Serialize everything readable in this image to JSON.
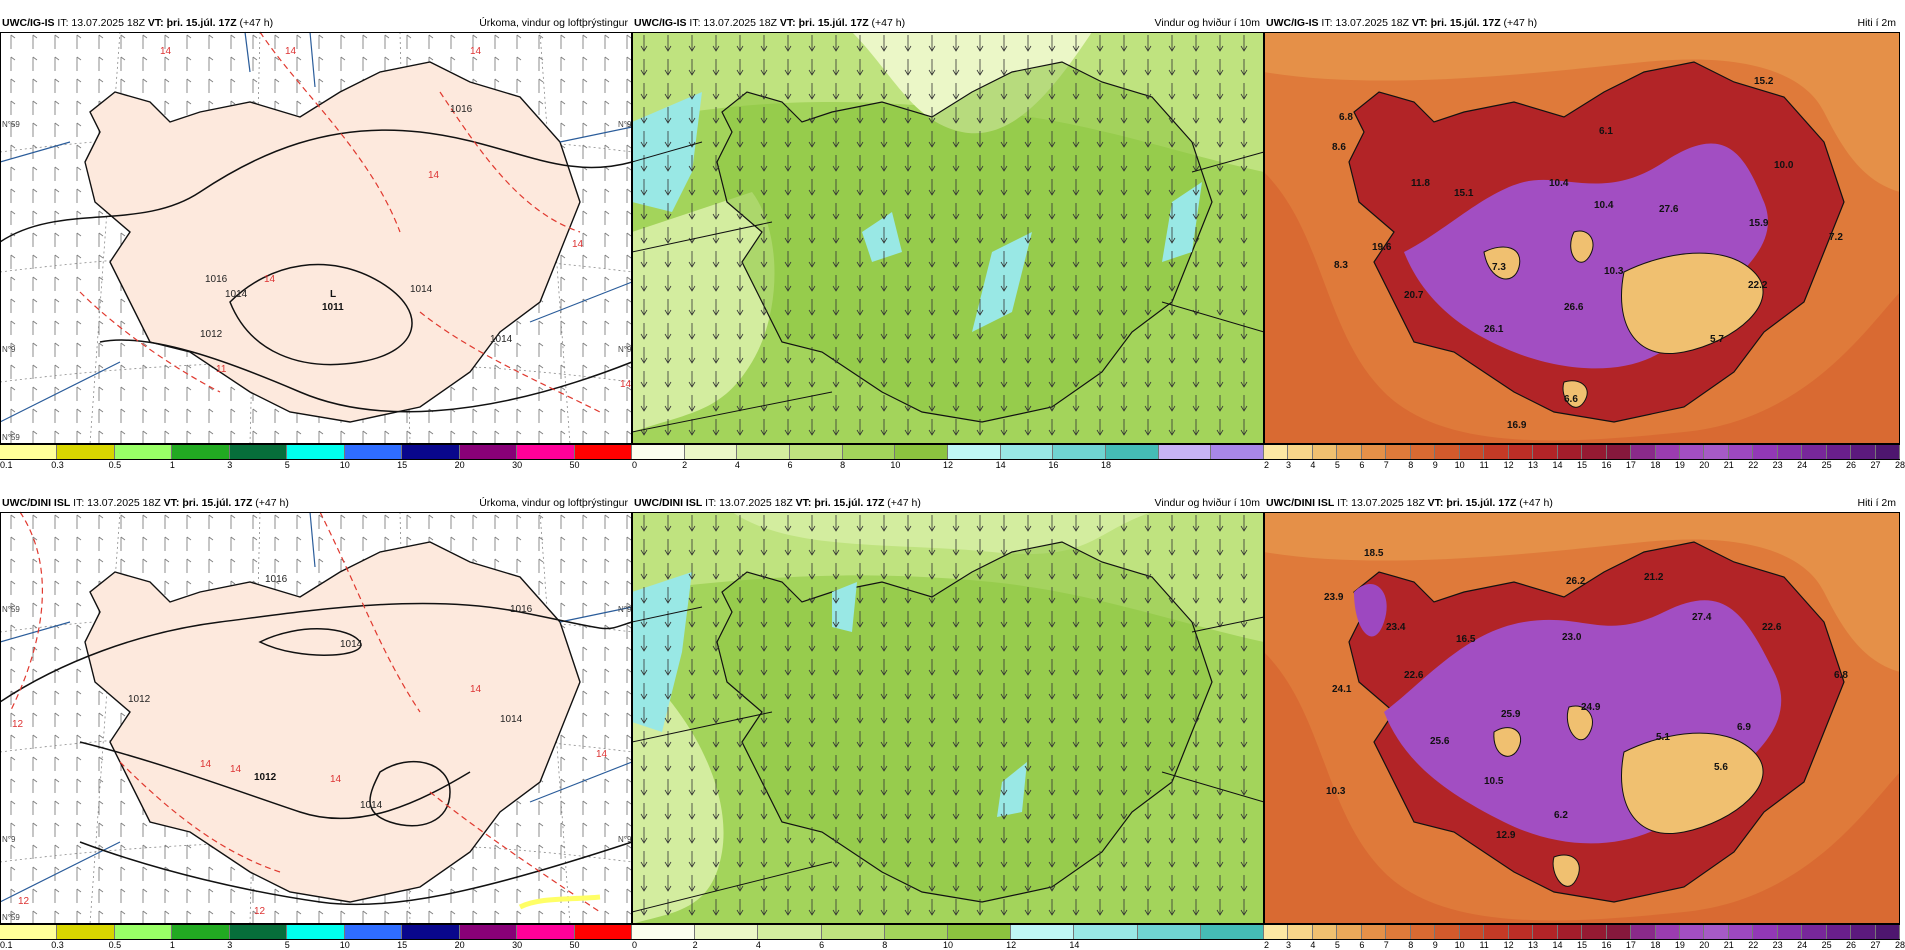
{
  "rows": [
    {
      "model": "UWC/IG-IS",
      "it_label": "IT: 13.07.2025 18Z",
      "vt_label": "VT: þri. 15.júl. 17Z",
      "lead": "(+47 h)",
      "panels": {
        "precip": {
          "title": "Úrkoma, vindur og loftþrýstingur",
          "pressure_labels": [
            "1016",
            "1014",
            "1012",
            "1016",
            "1014",
            "1014"
          ],
          "low_label": "L",
          "low_value": "1011",
          "precip_labels": [
            "14",
            "14",
            "14",
            "14",
            "14",
            "14",
            "11",
            "14"
          ],
          "edge_labels": [
            "N°59",
            "N°9",
            "N°9",
            "N°59",
            "N°9"
          ]
        },
        "wind": {
          "title": "Vindur og hviður í 10m"
        },
        "temp": {
          "title": "Hiti í 2m",
          "values": [
            "15.2",
            "6.8",
            "8.6",
            "6.1",
            "10.0",
            "11.8",
            "10.4",
            "15.1",
            "10.4",
            "27.6",
            "15.9",
            "7.2",
            "19.6",
            "8.3",
            "7.3",
            "10.3",
            "20.7",
            "22.2",
            "26.6",
            "26.1",
            "5.7",
            "6.6",
            "16.9"
          ]
        }
      }
    },
    {
      "model": "UWC/DINI ISL",
      "it_label": "IT: 13.07.2025 18Z",
      "vt_label": "VT: þri. 15.júl. 17Z",
      "lead": "(+47 h)",
      "panels": {
        "precip": {
          "title": "Úrkoma, vindur og loftþrýstingur",
          "pressure_labels": [
            "1016",
            "1014",
            "1016",
            "1014",
            "1012",
            "1014"
          ],
          "low_label": "",
          "low_value": "1012",
          "precip_labels": [
            "12",
            "14",
            "14",
            "14",
            "14",
            "14",
            "12",
            "12"
          ],
          "edge_labels": [
            "N°59",
            "N°9",
            "N°9",
            "N°59",
            "N°9"
          ]
        },
        "wind": {
          "title": "Vindur og hviður í 10m"
        },
        "temp": {
          "title": "Hiti í 2m",
          "values": [
            "18.5",
            "26.2",
            "21.2",
            "23.9",
            "27.4",
            "23.4",
            "22.6",
            "16.5",
            "23.0",
            "6.8",
            "22.6",
            "24.1",
            "25.9",
            "24.9",
            "25.6",
            "5.1",
            "6.9",
            "5.6",
            "10.3",
            "10.5",
            "6.2",
            "12.9"
          ]
        }
      }
    }
  ],
  "colorbars": {
    "precip": {
      "colors": [
        "#ffff99",
        "#d8d600",
        "#99ff66",
        "#22aa22",
        "#066e3a",
        "#00ffee",
        "#2f6dff",
        "#09078c",
        "#880077",
        "#ff0099",
        "#ff0000"
      ],
      "labels": [
        "0.1",
        "0.3",
        "0.5",
        "1",
        "3",
        "5",
        "10",
        "15",
        "20",
        "30",
        "50"
      ]
    },
    "wind_top": {
      "colors": [
        "#fbfeee",
        "#ebf7c7",
        "#d3ed9f",
        "#bfe37f",
        "#a3d45b",
        "#8cc43f",
        "#bff7f5",
        "#99e8e5",
        "#70d4d1",
        "#45bcb6",
        "#c7b3f5",
        "#a887e8"
      ],
      "labels": [
        "0",
        "2",
        "4",
        "6",
        "8",
        "10",
        "12",
        "14",
        "16",
        "18"
      ]
    },
    "wind_bottom": {
      "colors": [
        "#fbfeee",
        "#ebf7c7",
        "#d3ed9f",
        "#bfe37f",
        "#a3d45b",
        "#8cc43f",
        "#bff7f5",
        "#99e8e5",
        "#70d4d1",
        "#45bcb6"
      ],
      "labels": [
        "0",
        "2",
        "4",
        "6",
        "8",
        "10",
        "12",
        "14"
      ]
    },
    "temp": {
      "colors": [
        "#fde8a4",
        "#f7d58a",
        "#f0c070",
        "#eaa85a",
        "#e59048",
        "#df7a3a",
        "#d96a32",
        "#d25a2c",
        "#cb4a28",
        "#c43a26",
        "#bc2e26",
        "#b22427",
        "#a41d2b",
        "#951a32",
        "#86183c",
        "#8a2a8a",
        "#9a3cb0",
        "#a24ec2",
        "#a65ac6",
        "#9d48c0",
        "#9238b6",
        "#8530aa",
        "#78279a",
        "#6a1f8c",
        "#5c1a7d",
        "#4e166f"
      ],
      "labels": [
        "2",
        "3",
        "4",
        "5",
        "6",
        "7",
        "8",
        "9",
        "10",
        "11",
        "12",
        "13",
        "14",
        "15",
        "16",
        "17",
        "18",
        "19",
        "20",
        "21",
        "22",
        "23",
        "24",
        "25",
        "26",
        "27",
        "28"
      ]
    }
  }
}
